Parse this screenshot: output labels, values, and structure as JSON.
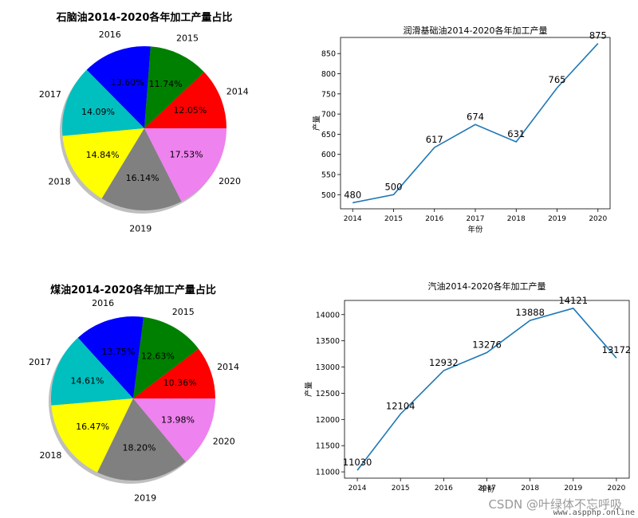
{
  "chart_data": [
    {
      "type": "pie",
      "title": "石脑油2014-2020各年加工产量占比",
      "labels": [
        "2014",
        "2015",
        "2016",
        "2017",
        "2018",
        "2019",
        "2020"
      ],
      "values": [
        12.05,
        11.74,
        13.6,
        14.09,
        14.84,
        16.14,
        17.53
      ],
      "value_labels": [
        "12.05%",
        "11.74%",
        "13.60%",
        "14.09%",
        "14.84%",
        "16.14%",
        "17.53%"
      ],
      "colors": [
        "#ff0000",
        "#008000",
        "#0000ff",
        "#00bfbf",
        "#ffff00",
        "#808080",
        "#ee82ee"
      ],
      "shadow": true
    },
    {
      "type": "line",
      "title": "润滑基础油2014-2020各年加工产量",
      "xlabel": "年份",
      "ylabel": "产量",
      "x": [
        "2014",
        "2015",
        "2016",
        "2017",
        "2018",
        "2019",
        "2020"
      ],
      "values": [
        480,
        500,
        617,
        674,
        631,
        765,
        875
      ],
      "point_labels": [
        "480",
        "500",
        "617",
        "674",
        "631",
        "765",
        "875"
      ],
      "ylim": [
        465,
        890
      ],
      "yticks": [
        500,
        550,
        600,
        650,
        700,
        750,
        800,
        850
      ],
      "color": "#1f77b4",
      "grid": false
    },
    {
      "type": "pie",
      "title": "煤油2014-2020各年加工产量占比",
      "labels": [
        "2014",
        "2015",
        "2016",
        "2017",
        "2018",
        "2019",
        "2020"
      ],
      "values": [
        10.36,
        12.63,
        13.75,
        14.61,
        16.47,
        18.2,
        13.98
      ],
      "value_labels": [
        "10.36%",
        "12.63%",
        "13.75%",
        "14.61%",
        "16.47%",
        "18.20%",
        "13.98%"
      ],
      "colors": [
        "#ff0000",
        "#008000",
        "#0000ff",
        "#00bfbf",
        "#ffff00",
        "#808080",
        "#ee82ee"
      ],
      "shadow": true
    },
    {
      "type": "line",
      "title": "汽油2014-2020各年加工产量",
      "xlabel": "年份",
      "ylabel": "产量",
      "x": [
        "2014",
        "2015",
        "2016",
        "2017",
        "2018",
        "2019",
        "2020"
      ],
      "values": [
        11030,
        12104,
        12932,
        13276,
        13888,
        14121,
        13172
      ],
      "point_labels": [
        "11030",
        "12104",
        "12932",
        "13276",
        "13888",
        "14121",
        "13172"
      ],
      "ylim": [
        10880,
        14270
      ],
      "yticks": [
        11000,
        11500,
        12000,
        12500,
        13000,
        13500,
        14000
      ],
      "color": "#1f77b4",
      "grid": false
    }
  ],
  "watermark": {
    "csdn": "CSDN @叶绿体不忘呼吸",
    "site": "www.aspphp.online"
  }
}
